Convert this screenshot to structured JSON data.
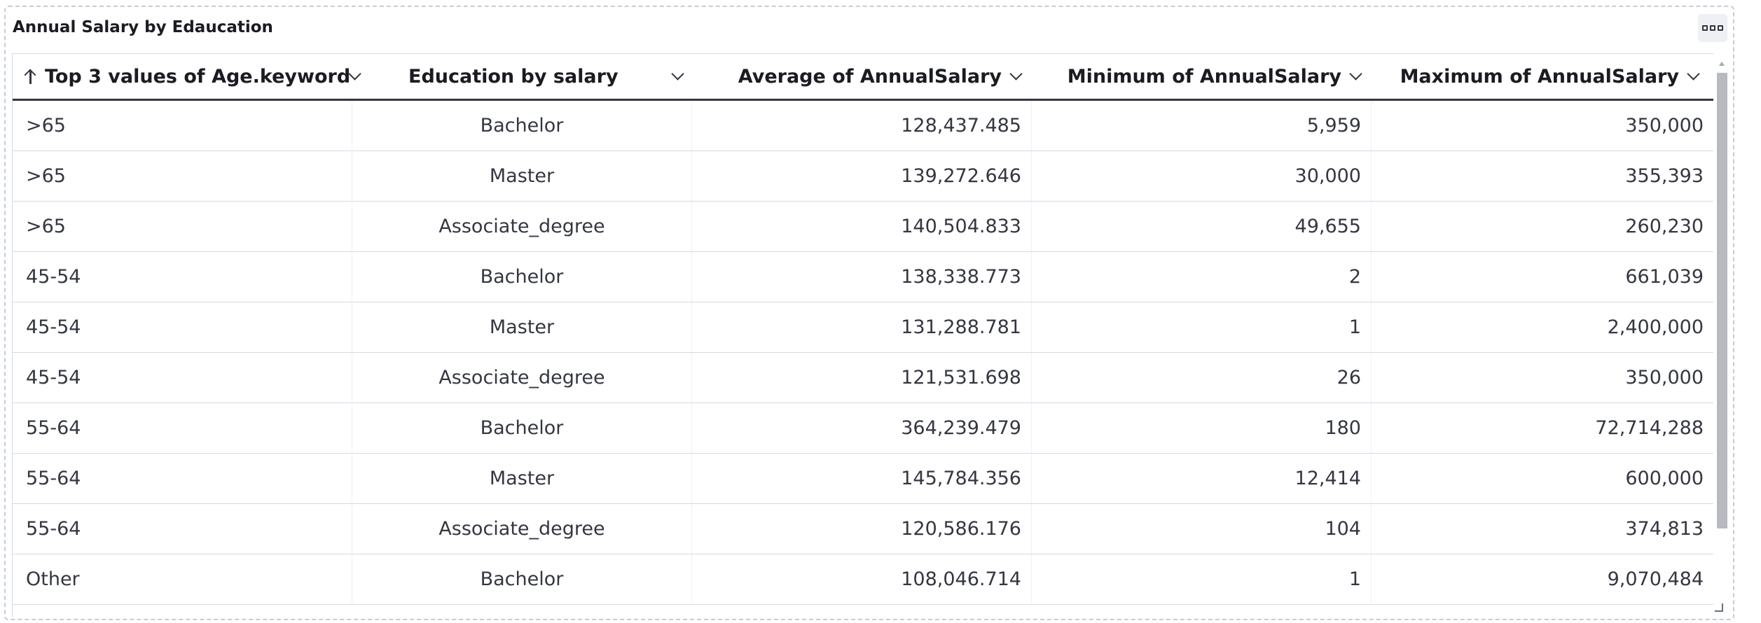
{
  "panel": {
    "title": "Annual Salary by Edaucation"
  },
  "table": {
    "columns": [
      {
        "label": "Top 3 values of Age.keyword",
        "sort": "ascending"
      },
      {
        "label": "Education by salary"
      },
      {
        "label": "Average of AnnualSalary"
      },
      {
        "label": "Minimum of AnnualSalary"
      },
      {
        "label": "Maximum of AnnualSalary"
      }
    ],
    "rows": [
      [
        ">65",
        "Bachelor",
        "128,437.485",
        "5,959",
        "350,000"
      ],
      [
        ">65",
        "Master",
        "139,272.646",
        "30,000",
        "355,393"
      ],
      [
        ">65",
        "Associate_degree",
        "140,504.833",
        "49,655",
        "260,230"
      ],
      [
        "45-54",
        "Bachelor",
        "138,338.773",
        "2",
        "661,039"
      ],
      [
        "45-54",
        "Master",
        "131,288.781",
        "1",
        "2,400,000"
      ],
      [
        "45-54",
        "Associate_degree",
        "121,531.698",
        "26",
        "350,000"
      ],
      [
        "55-64",
        "Bachelor",
        "364,239.479",
        "180",
        "72,714,288"
      ],
      [
        "55-64",
        "Master",
        "145,784.356",
        "12,414",
        "600,000"
      ],
      [
        "55-64",
        "Associate_degree",
        "120,586.176",
        "104",
        "374,813"
      ],
      [
        "Other",
        "Bachelor",
        "108,046.714",
        "1",
        "9,070,484"
      ]
    ]
  },
  "icons": {
    "options": "panel-options-icon",
    "sort": "arrow-up-icon",
    "column_menu": "chevron-down-icon"
  },
  "colors": {
    "header_border": "#343741",
    "grid_line": "#d3dae6",
    "text": "#343741",
    "scroll_thumb": "#b7babf"
  }
}
